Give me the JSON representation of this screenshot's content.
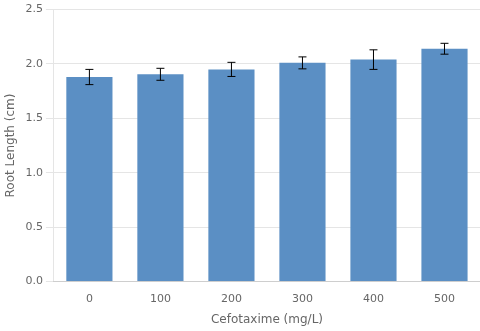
{
  "chart_data": {
    "type": "bar",
    "categories": [
      "0",
      "100",
      "200",
      "300",
      "400",
      "500"
    ],
    "values": [
      1.88,
      1.905,
      1.95,
      2.01,
      2.04,
      2.14
    ],
    "errors": [
      0.07,
      0.055,
      0.065,
      0.055,
      0.09,
      0.05
    ],
    "color": "#5B8FC4",
    "xlabel": "Cefotaxime (mg/L)",
    "ylabel": "Root Length (cm)",
    "ylim": [
      0.0,
      2.5
    ],
    "yticks": [
      {
        "value": 0,
        "label": "0.0"
      },
      0.5,
      {
        "value": 1,
        "label": "1.0"
      },
      1.5,
      {
        "value": 2,
        "label": "2.0"
      },
      2.5
    ],
    "grid": true
  }
}
